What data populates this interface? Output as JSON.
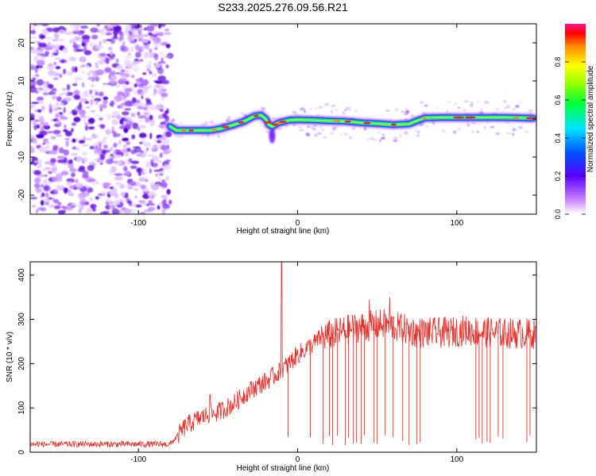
{
  "title": "S233.2025.276.09.56.R21",
  "chart_data": [
    {
      "type": "heatmap",
      "name": "spectrogram",
      "xlabel": "Height of straight line (km)",
      "ylabel": "Frequency (Hz)",
      "xlim": [
        -168,
        150
      ],
      "ylim": [
        -25,
        25
      ],
      "xticks": [
        -100,
        0,
        100
      ],
      "xtick_labels": [
        "-100",
        "0",
        "100"
      ],
      "yticks": [
        -20,
        -10,
        0,
        10,
        20
      ],
      "ytick_labels": [
        "-20",
        "-10",
        "0",
        "10",
        "20"
      ],
      "noise_region_x": [
        -168,
        -80
      ],
      "signal_track": {
        "x": [
          -80,
          -76,
          -70,
          -62,
          -55,
          -48,
          -40,
          -33,
          -27,
          -23,
          -20,
          -18,
          -16,
          -12,
          -5,
          0,
          10,
          20,
          30,
          40,
          50,
          60,
          70,
          76,
          80,
          90,
          100,
          110,
          120,
          130,
          140,
          148
        ],
        "y": [
          -2,
          -3,
          -3,
          -3,
          -3,
          -2.5,
          -1.5,
          -0.5,
          0.8,
          1,
          0,
          -1.5,
          -2,
          -1,
          -0.3,
          -0.2,
          -0.3,
          -0.5,
          -0.6,
          -1,
          -1.2,
          -1.5,
          -1.3,
          -0.3,
          0.3,
          0.4,
          0.4,
          0.4,
          0.4,
          0.4,
          0.3,
          0.2
        ]
      }
    },
    {
      "type": "line",
      "name": "snr",
      "xlabel": "Height of straight line (km)",
      "ylabel": "SNR (10 * v/v)",
      "xlim": [
        -168,
        150
      ],
      "ylim": [
        0,
        430
      ],
      "xticks": [
        -100,
        0,
        100
      ],
      "xtick_labels": [
        "-100",
        "0",
        "100"
      ],
      "yticks": [
        0,
        100,
        200,
        300,
        400
      ],
      "ytick_labels": [
        "0",
        "100",
        "200",
        "300",
        "400"
      ],
      "color": "#e8302a",
      "trend": {
        "x": [
          -168,
          -90,
          -80,
          -70,
          -60,
          -50,
          -40,
          -30,
          -20,
          -10,
          0,
          10,
          15,
          25,
          35,
          45,
          55,
          65,
          75,
          85,
          95,
          105,
          115,
          125,
          135,
          150
        ],
        "y": [
          18,
          18,
          18,
          60,
          80,
          90,
          110,
          140,
          160,
          185,
          220,
          245,
          260,
          270,
          280,
          285,
          290,
          280,
          270,
          270,
          270,
          275,
          272,
          270,
          268,
          268
        ]
      },
      "spikes": [
        {
          "x": -10,
          "y": 430
        },
        {
          "x": -55,
          "y": 130
        },
        {
          "x": 45,
          "y": 345
        },
        {
          "x": 58,
          "y": 350
        }
      ],
      "dropouts_x": [
        -6,
        8,
        16,
        20,
        22,
        25,
        30,
        32,
        35,
        37,
        40,
        42,
        48,
        50,
        55,
        60,
        66,
        70,
        75,
        77,
        112,
        114,
        116,
        119,
        121,
        126,
        129,
        144,
        146
      ]
    }
  ],
  "colorbar": {
    "label": "Normalized spectral amplitude",
    "min": 0,
    "max": 1,
    "ticks": [
      0,
      0.2,
      0.4,
      0.6,
      0.8
    ],
    "tick_labels": [
      "0.0",
      "0.2",
      "0.4",
      "0.6",
      "0.8"
    ]
  }
}
